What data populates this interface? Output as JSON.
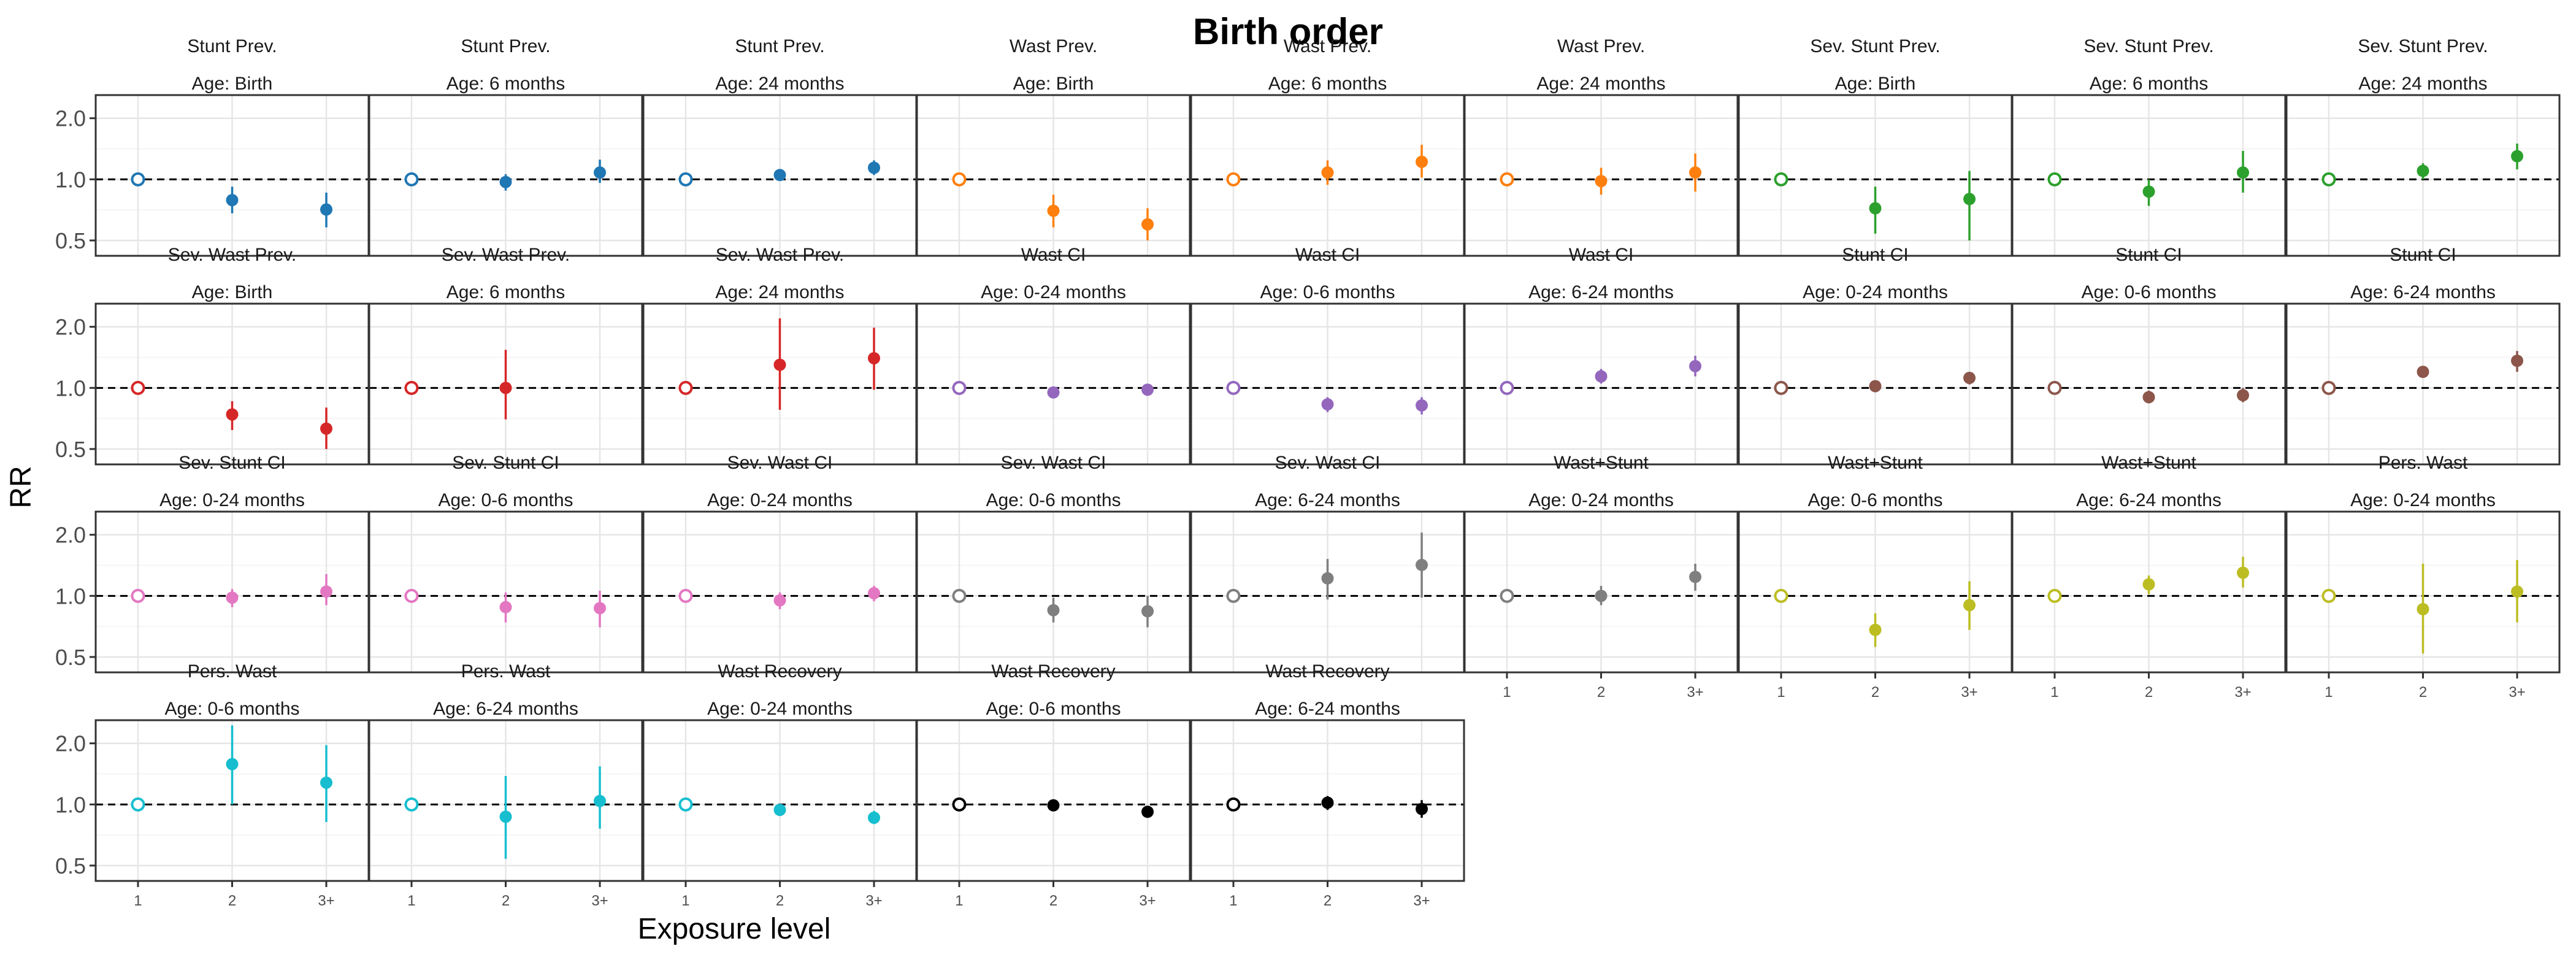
{
  "chart_data": {
    "type": "scatter",
    "title": "Birth order",
    "xlabel": "Exposure level",
    "ylabel": "RR",
    "scale_y": "log",
    "ylim": [
      0.42,
      2.6
    ],
    "y_ticks": [
      0.5,
      1.0,
      2.0
    ],
    "y_tick_labels": [
      "0.5",
      "1.0",
      "2.0"
    ],
    "x_categories": [
      "1",
      "2",
      "3+"
    ],
    "reference_line": 1.0,
    "grid": true,
    "legend": "none",
    "panels": [
      {
        "line1": "Stunt Prev.",
        "line2": "Age: Birth",
        "color": "#1f77b4",
        "points": [
          {
            "x": "1",
            "y": 1.0,
            "lo": 1.0,
            "hi": 1.0
          },
          {
            "x": "2",
            "y": 0.79,
            "lo": 0.68,
            "hi": 0.92
          },
          {
            "x": "3+",
            "y": 0.71,
            "lo": 0.58,
            "hi": 0.86
          }
        ]
      },
      {
        "line1": "Stunt Prev.",
        "line2": "Age: 6 months",
        "color": "#1f77b4",
        "points": [
          {
            "x": "1",
            "y": 1.0,
            "lo": 1.0,
            "hi": 1.0
          },
          {
            "x": "2",
            "y": 0.97,
            "lo": 0.88,
            "hi": 1.06
          },
          {
            "x": "3+",
            "y": 1.08,
            "lo": 0.96,
            "hi": 1.25
          }
        ]
      },
      {
        "line1": "Stunt Prev.",
        "line2": "Age: 24 months",
        "color": "#1f77b4",
        "points": [
          {
            "x": "1",
            "y": 1.0,
            "lo": 1.0,
            "hi": 1.0
          },
          {
            "x": "2",
            "y": 1.05,
            "lo": 1.0,
            "hi": 1.1
          },
          {
            "x": "3+",
            "y": 1.14,
            "lo": 1.05,
            "hi": 1.24
          }
        ]
      },
      {
        "line1": "Wast Prev.",
        "line2": "Age: Birth",
        "color": "#ff7f0e",
        "points": [
          {
            "x": "1",
            "y": 1.0,
            "lo": 1.0,
            "hi": 1.0
          },
          {
            "x": "2",
            "y": 0.7,
            "lo": 0.58,
            "hi": 0.84
          },
          {
            "x": "3+",
            "y": 0.6,
            "lo": 0.5,
            "hi": 0.72
          }
        ]
      },
      {
        "line1": "Wast Prev.",
        "line2": "Age: 6 months",
        "color": "#ff7f0e",
        "points": [
          {
            "x": "1",
            "y": 1.0,
            "lo": 1.0,
            "hi": 1.0
          },
          {
            "x": "2",
            "y": 1.08,
            "lo": 0.94,
            "hi": 1.24
          },
          {
            "x": "3+",
            "y": 1.22,
            "lo": 1.02,
            "hi": 1.48
          }
        ]
      },
      {
        "line1": "Wast Prev.",
        "line2": "Age: 24 months",
        "color": "#ff7f0e",
        "points": [
          {
            "x": "1",
            "y": 1.0,
            "lo": 1.0,
            "hi": 1.0
          },
          {
            "x": "2",
            "y": 0.98,
            "lo": 0.84,
            "hi": 1.14
          },
          {
            "x": "3+",
            "y": 1.08,
            "lo": 0.87,
            "hi": 1.34
          }
        ]
      },
      {
        "line1": "Sev. Stunt Prev.",
        "line2": "Age: Birth",
        "color": "#2ca02c",
        "points": [
          {
            "x": "1",
            "y": 1.0,
            "lo": 1.0,
            "hi": 1.0
          },
          {
            "x": "2",
            "y": 0.72,
            "lo": 0.54,
            "hi": 0.92
          },
          {
            "x": "3+",
            "y": 0.8,
            "lo": 0.5,
            "hi": 1.1
          }
        ]
      },
      {
        "line1": "Sev. Stunt Prev.",
        "line2": "Age: 6 months",
        "color": "#2ca02c",
        "points": [
          {
            "x": "1",
            "y": 1.0,
            "lo": 1.0,
            "hi": 1.0
          },
          {
            "x": "2",
            "y": 0.87,
            "lo": 0.74,
            "hi": 1.0
          },
          {
            "x": "3+",
            "y": 1.08,
            "lo": 0.86,
            "hi": 1.38
          }
        ]
      },
      {
        "line1": "Sev. Stunt Prev.",
        "line2": "Age: 24 months",
        "color": "#2ca02c",
        "points": [
          {
            "x": "1",
            "y": 1.0,
            "lo": 1.0,
            "hi": 1.0
          },
          {
            "x": "2",
            "y": 1.1,
            "lo": 1.0,
            "hi": 1.2
          },
          {
            "x": "3+",
            "y": 1.3,
            "lo": 1.12,
            "hi": 1.5
          }
        ]
      },
      {
        "line1": "Sev. Wast Prev.",
        "line2": "Age: Birth",
        "color": "#d62728",
        "points": [
          {
            "x": "1",
            "y": 1.0,
            "lo": 1.0,
            "hi": 1.0
          },
          {
            "x": "2",
            "y": 0.74,
            "lo": 0.62,
            "hi": 0.86
          },
          {
            "x": "3+",
            "y": 0.63,
            "lo": 0.5,
            "hi": 0.8
          }
        ]
      },
      {
        "line1": "Sev. Wast Prev.",
        "line2": "Age: 6 months",
        "color": "#d62728",
        "points": [
          {
            "x": "1",
            "y": 1.0,
            "lo": 1.0,
            "hi": 1.0
          },
          {
            "x": "2",
            "y": 1.0,
            "lo": 0.7,
            "hi": 1.54
          }
        ]
      },
      {
        "line1": "Sev. Wast Prev.",
        "line2": "Age: 24 months",
        "color": "#d62728",
        "points": [
          {
            "x": "1",
            "y": 1.0,
            "lo": 1.0,
            "hi": 1.0
          },
          {
            "x": "2",
            "y": 1.3,
            "lo": 0.78,
            "hi": 2.2
          },
          {
            "x": "3+",
            "y": 1.4,
            "lo": 0.98,
            "hi": 1.98
          }
        ]
      },
      {
        "line1": "Wast CI",
        "line2": "Age: 0-24 months",
        "color": "#9467bd",
        "points": [
          {
            "x": "1",
            "y": 1.0,
            "lo": 1.0,
            "hi": 1.0
          },
          {
            "x": "2",
            "y": 0.95,
            "lo": 0.9,
            "hi": 1.0
          },
          {
            "x": "3+",
            "y": 0.98,
            "lo": 0.93,
            "hi": 1.03
          }
        ]
      },
      {
        "line1": "Wast CI",
        "line2": "Age: 0-6 months",
        "color": "#9467bd",
        "points": [
          {
            "x": "1",
            "y": 1.0,
            "lo": 1.0,
            "hi": 1.0
          },
          {
            "x": "2",
            "y": 0.83,
            "lo": 0.76,
            "hi": 0.9
          },
          {
            "x": "3+",
            "y": 0.82,
            "lo": 0.74,
            "hi": 0.9
          }
        ]
      },
      {
        "line1": "Wast CI",
        "line2": "Age: 6-24 months",
        "color": "#9467bd",
        "points": [
          {
            "x": "1",
            "y": 1.0,
            "lo": 1.0,
            "hi": 1.0
          },
          {
            "x": "2",
            "y": 1.14,
            "lo": 1.05,
            "hi": 1.24
          },
          {
            "x": "3+",
            "y": 1.28,
            "lo": 1.14,
            "hi": 1.44
          }
        ]
      },
      {
        "line1": "Stunt CI",
        "line2": "Age: 0-24 months",
        "color": "#8c564b",
        "points": [
          {
            "x": "1",
            "y": 1.0,
            "lo": 1.0,
            "hi": 1.0
          },
          {
            "x": "2",
            "y": 1.02,
            "lo": 0.98,
            "hi": 1.06
          },
          {
            "x": "3+",
            "y": 1.12,
            "lo": 1.04,
            "hi": 1.2
          }
        ]
      },
      {
        "line1": "Stunt CI",
        "line2": "Age: 0-6 months",
        "color": "#8c564b",
        "points": [
          {
            "x": "1",
            "y": 1.0,
            "lo": 1.0,
            "hi": 1.0
          },
          {
            "x": "2",
            "y": 0.9,
            "lo": 0.84,
            "hi": 0.97
          },
          {
            "x": "3+",
            "y": 0.92,
            "lo": 0.85,
            "hi": 1.0
          }
        ]
      },
      {
        "line1": "Stunt CI",
        "line2": "Age: 6-24 months",
        "color": "#8c564b",
        "points": [
          {
            "x": "1",
            "y": 1.0,
            "lo": 1.0,
            "hi": 1.0
          },
          {
            "x": "2",
            "y": 1.2,
            "lo": 1.12,
            "hi": 1.28
          },
          {
            "x": "3+",
            "y": 1.36,
            "lo": 1.2,
            "hi": 1.52
          }
        ]
      },
      {
        "line1": "Sev. Stunt CI",
        "line2": "Age: 0-24 months",
        "color": "#e377c2",
        "points": [
          {
            "x": "1",
            "y": 1.0,
            "lo": 1.0,
            "hi": 1.0
          },
          {
            "x": "2",
            "y": 0.98,
            "lo": 0.88,
            "hi": 1.08
          },
          {
            "x": "3+",
            "y": 1.05,
            "lo": 0.9,
            "hi": 1.28
          }
        ]
      },
      {
        "line1": "Sev. Stunt CI",
        "line2": "Age: 0-6 months",
        "color": "#e377c2",
        "points": [
          {
            "x": "1",
            "y": 1.0,
            "lo": 1.0,
            "hi": 1.0
          },
          {
            "x": "2",
            "y": 0.88,
            "lo": 0.74,
            "hi": 1.04
          },
          {
            "x": "3+",
            "y": 0.87,
            "lo": 0.7,
            "hi": 1.06
          }
        ]
      },
      {
        "line1": "Sev. Wast CI",
        "line2": "Age: 0-24 months",
        "color": "#e377c2",
        "points": [
          {
            "x": "1",
            "y": 1.0,
            "lo": 1.0,
            "hi": 1.0
          },
          {
            "x": "2",
            "y": 0.95,
            "lo": 0.86,
            "hi": 1.04
          },
          {
            "x": "3+",
            "y": 1.03,
            "lo": 0.94,
            "hi": 1.12
          }
        ]
      },
      {
        "line1": "Sev. Wast CI",
        "line2": "Age: 0-6 months",
        "color": "#7f7f7f",
        "points": [
          {
            "x": "1",
            "y": 1.0,
            "lo": 1.0,
            "hi": 1.0
          },
          {
            "x": "2",
            "y": 0.85,
            "lo": 0.74,
            "hi": 0.98
          },
          {
            "x": "3+",
            "y": 0.84,
            "lo": 0.7,
            "hi": 1.0
          }
        ]
      },
      {
        "line1": "Sev. Wast CI",
        "line2": "Age: 6-24 months",
        "color": "#7f7f7f",
        "points": [
          {
            "x": "1",
            "y": 1.0,
            "lo": 1.0,
            "hi": 1.0
          },
          {
            "x": "2",
            "y": 1.22,
            "lo": 0.96,
            "hi": 1.52
          },
          {
            "x": "3+",
            "y": 1.42,
            "lo": 0.98,
            "hi": 2.05
          }
        ]
      },
      {
        "line1": "Wast+Stunt",
        "line2": "Age: 0-24 months",
        "color": "#7f7f7f",
        "points": [
          {
            "x": "1",
            "y": 1.0,
            "lo": 1.0,
            "hi": 1.0
          },
          {
            "x": "2",
            "y": 1.0,
            "lo": 0.9,
            "hi": 1.12
          },
          {
            "x": "3+",
            "y": 1.24,
            "lo": 1.06,
            "hi": 1.44
          }
        ]
      },
      {
        "line1": "Wast+Stunt",
        "line2": "Age: 0-6 months",
        "color": "#bcbd22",
        "points": [
          {
            "x": "1",
            "y": 1.0,
            "lo": 1.0,
            "hi": 1.0
          },
          {
            "x": "2",
            "y": 0.68,
            "lo": 0.56,
            "hi": 0.82
          },
          {
            "x": "3+",
            "y": 0.9,
            "lo": 0.68,
            "hi": 1.18
          }
        ]
      },
      {
        "line1": "Wast+Stunt",
        "line2": "Age: 6-24 months",
        "color": "#bcbd22",
        "points": [
          {
            "x": "1",
            "y": 1.0,
            "lo": 1.0,
            "hi": 1.0
          },
          {
            "x": "2",
            "y": 1.14,
            "lo": 1.02,
            "hi": 1.26
          },
          {
            "x": "3+",
            "y": 1.3,
            "lo": 1.1,
            "hi": 1.56
          }
        ]
      },
      {
        "line1": "Pers. Wast",
        "line2": "Age: 0-24 months",
        "color": "#bcbd22",
        "points": [
          {
            "x": "1",
            "y": 1.0,
            "lo": 1.0,
            "hi": 1.0
          },
          {
            "x": "2",
            "y": 0.86,
            "lo": 0.52,
            "hi": 1.44
          },
          {
            "x": "3+",
            "y": 1.05,
            "lo": 0.74,
            "hi": 1.5
          }
        ]
      },
      {
        "line1": "Pers. Wast",
        "line2": "Age: 0-6 months",
        "color": "#17becf",
        "points": [
          {
            "x": "1",
            "y": 1.0,
            "lo": 1.0,
            "hi": 1.0
          },
          {
            "x": "2",
            "y": 1.58,
            "lo": 1.0,
            "hi": 2.45
          },
          {
            "x": "3+",
            "y": 1.28,
            "lo": 0.82,
            "hi": 1.96
          }
        ]
      },
      {
        "line1": "Pers. Wast",
        "line2": "Age: 6-24 months",
        "color": "#17becf",
        "points": [
          {
            "x": "1",
            "y": 1.0,
            "lo": 1.0,
            "hi": 1.0
          },
          {
            "x": "2",
            "y": 0.87,
            "lo": 0.54,
            "hi": 1.38
          },
          {
            "x": "3+",
            "y": 1.04,
            "lo": 0.76,
            "hi": 1.54
          }
        ]
      },
      {
        "line1": "Wast Recovery",
        "line2": "Age: 0-24 months",
        "color": "#17becf",
        "points": [
          {
            "x": "1",
            "y": 1.0,
            "lo": 1.0,
            "hi": 1.0
          },
          {
            "x": "2",
            "y": 0.94,
            "lo": 0.9,
            "hi": 0.98
          },
          {
            "x": "3+",
            "y": 0.86,
            "lo": 0.8,
            "hi": 0.93
          }
        ]
      },
      {
        "line1": "Wast Recovery",
        "line2": "Age: 0-6 months",
        "color": "#000000",
        "points": [
          {
            "x": "1",
            "y": 1.0,
            "lo": 1.0,
            "hi": 1.0
          },
          {
            "x": "2",
            "y": 0.99,
            "lo": 0.96,
            "hi": 1.02
          },
          {
            "x": "3+",
            "y": 0.92,
            "lo": 0.88,
            "hi": 0.96
          }
        ]
      },
      {
        "line1": "Wast Recovery",
        "line2": "Age: 6-24 months",
        "color": "#000000",
        "points": [
          {
            "x": "1",
            "y": 1.0,
            "lo": 1.0,
            "hi": 1.0
          },
          {
            "x": "2",
            "y": 1.02,
            "lo": 0.94,
            "hi": 1.1
          },
          {
            "x": "3+",
            "y": 0.95,
            "lo": 0.86,
            "hi": 1.05
          }
        ]
      }
    ]
  }
}
